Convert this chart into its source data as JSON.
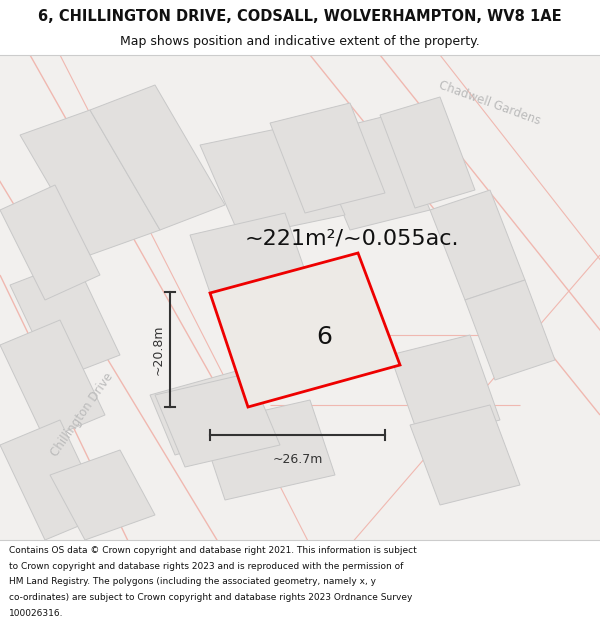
{
  "title": "6, CHILLINGTON DRIVE, CODSALL, WOLVERHAMPTON, WV8 1AE",
  "subtitle": "Map shows position and indicative extent of the property.",
  "area_text": "~221m²/~0.055ac.",
  "dim_h": "~26.7m",
  "dim_v": "~20.8m",
  "property_label": "6",
  "street_label1": "Chillington Drive",
  "street_label2": "Chadwell Gardens",
  "footer_lines": [
    "Contains OS data © Crown copyright and database right 2021. This information is subject",
    "to Crown copyright and database rights 2023 and is reproduced with the permission of",
    "HM Land Registry. The polygons (including the associated geometry, namely x, y",
    "co-ordinates) are subject to Crown copyright and database rights 2023 Ordnance Survey",
    "100026316."
  ],
  "bg_color": "#ffffff",
  "map_bg": "#f2f0ee",
  "building_fill": "#e2e0de",
  "building_edge": "#c8c8c8",
  "road_color": "#f0b8b0",
  "property_fill": "#edeae6",
  "property_edge": "#ee0000",
  "dim_line_color": "#333333",
  "title_color": "#111111",
  "footer_color": "#111111",
  "area_text_color": "#111111",
  "street_color": "#bbbbbb",
  "title_fontsize": 10.5,
  "subtitle_fontsize": 9.0,
  "area_fontsize": 16,
  "dim_fontsize": 9,
  "label_fontsize": 18,
  "street_fontsize": 8.5,
  "footer_fontsize": 6.5
}
